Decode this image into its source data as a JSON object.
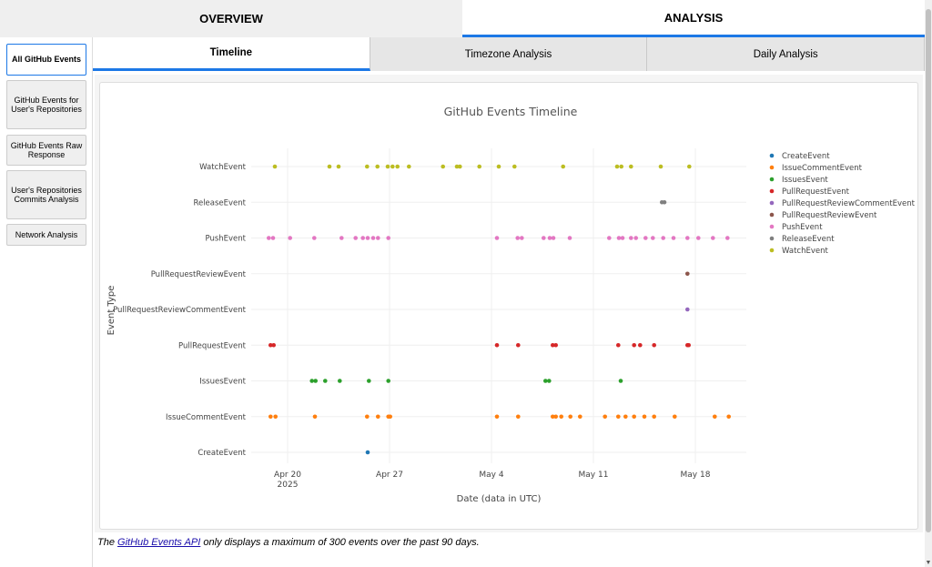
{
  "top_tabs": [
    {
      "label": "OVERVIEW",
      "active": false
    },
    {
      "label": "ANALYSIS",
      "active": true
    }
  ],
  "sidebar": {
    "items": [
      {
        "label": "All GitHub Events",
        "active": true
      },
      {
        "label": "GitHub Events for User's Repositories",
        "active": false
      },
      {
        "label": "GitHub Events Raw Response",
        "active": false
      },
      {
        "label": "User's Repositories Commits Analysis",
        "active": false
      },
      {
        "label": "Network Analysis",
        "active": false
      }
    ]
  },
  "sub_tabs": [
    {
      "label": "Timeline",
      "active": true
    },
    {
      "label": "Timezone Analysis",
      "active": false
    },
    {
      "label": "Daily Analysis",
      "active": false
    }
  ],
  "footnote": {
    "prefix": "The ",
    "link": "GitHub Events API",
    "suffix": " only displays a maximum of 300 events over the past 90 days."
  },
  "colors": {
    "accent": "#1c78e6",
    "CreateEvent": "#1f77b4",
    "IssueCommentEvent": "#ff7f0e",
    "IssuesEvent": "#2ca02c",
    "PullRequestEvent": "#d62728",
    "PullRequestReviewCommentEvent": "#9467bd",
    "PullRequestReviewEvent": "#8c564b",
    "PushEvent": "#e377c2",
    "ReleaseEvent": "#7f7f7f",
    "WatchEvent": "#bcbd22"
  },
  "chart_data": {
    "type": "scatter",
    "title": "GitHub Events Timeline",
    "xlabel": "Date (data in UTC)",
    "ylabel": "Event Type",
    "x_ticks": [
      "2025-04-20",
      "2025-04-27",
      "2025-05-04",
      "2025-05-11",
      "2025-05-18"
    ],
    "x_tick_labels": [
      "Apr 20",
      "Apr 27",
      "May 4",
      "May 11",
      "May 18"
    ],
    "x_year_label": "2025",
    "xlim": [
      "2025-04-17T12:00",
      "2025-05-21T12:00"
    ],
    "grid": true,
    "legend_position": "right",
    "categories": [
      "CreateEvent",
      "IssuesEvent",
      "IssueCommentEvent",
      "PullRequestEvent",
      "PullRequestReviewCommentEvent",
      "PullRequestReviewEvent",
      "PushEvent",
      "ReleaseEvent",
      "WatchEvent"
    ],
    "y_order": [
      "CreateEvent",
      "IssueCommentEvent",
      "IssuesEvent",
      "PullRequestEvent",
      "PullRequestReviewCommentEvent",
      "PullRequestReviewEvent",
      "PushEvent",
      "ReleaseEvent",
      "WatchEvent"
    ],
    "legend_order": [
      "CreateEvent",
      "IssueCommentEvent",
      "IssuesEvent",
      "PullRequestEvent",
      "PullRequestReviewCommentEvent",
      "PullRequestReviewEvent",
      "PushEvent",
      "ReleaseEvent",
      "WatchEvent"
    ],
    "series": [
      {
        "name": "CreateEvent",
        "x": [
          "2025-04-25T12:00"
        ]
      },
      {
        "name": "IssueCommentEvent",
        "x": [
          "2025-04-18T20:00",
          "2025-04-19T04:00",
          "2025-04-21T21:00",
          "2025-04-25T11:00",
          "2025-04-26T05:00",
          "2025-04-26T22:00",
          "2025-04-27T01:00",
          "2025-05-04T09:00",
          "2025-05-05T20:00",
          "2025-05-08T05:00",
          "2025-05-08T10:00",
          "2025-05-08T19:00",
          "2025-05-09T10:00",
          "2025-05-10T02:00",
          "2025-05-11T19:00",
          "2025-05-12T17:00",
          "2025-05-13T05:00",
          "2025-05-13T19:00",
          "2025-05-14T12:00",
          "2025-05-15T04:00",
          "2025-05-16T14:00",
          "2025-05-19T08:00",
          "2025-05-20T07:00"
        ]
      },
      {
        "name": "IssuesEvent",
        "x": [
          "2025-04-21T16:00",
          "2025-04-21T22:00",
          "2025-04-22T14:00",
          "2025-04-23T14:00",
          "2025-04-25T14:00",
          "2025-04-26T22:00",
          "2025-05-07T17:00",
          "2025-05-07T23:00",
          "2025-05-12T21:00"
        ]
      },
      {
        "name": "PullRequestEvent",
        "x": [
          "2025-04-18T20:00",
          "2025-04-19T01:00",
          "2025-05-04T09:00",
          "2025-05-05T20:00",
          "2025-05-08T05:00",
          "2025-05-08T10:00",
          "2025-05-12T17:00",
          "2025-05-13T19:00",
          "2025-05-14T05:00",
          "2025-05-15T04:00",
          "2025-05-17T11:00",
          "2025-05-17T13:00"
        ]
      },
      {
        "name": "PullRequestReviewCommentEvent",
        "x": [
          "2025-05-17T11:00"
        ]
      },
      {
        "name": "PullRequestReviewEvent",
        "x": [
          "2025-05-17T11:00"
        ]
      },
      {
        "name": "PushEvent",
        "x": [
          "2025-04-18T17:00",
          "2025-04-19T00:00",
          "2025-04-20T04:00",
          "2025-04-21T20:00",
          "2025-04-23T17:00",
          "2025-04-24T16:00",
          "2025-04-25T04:00",
          "2025-04-25T12:00",
          "2025-04-25T21:00",
          "2025-04-26T05:00",
          "2025-04-26T22:00",
          "2025-05-04T09:00",
          "2025-05-05T19:00",
          "2025-05-06T02:00",
          "2025-05-07T14:00",
          "2025-05-08T00:00",
          "2025-05-08T06:00",
          "2025-05-09T09:00",
          "2025-05-12T02:00",
          "2025-05-12T18:00",
          "2025-05-13T00:00",
          "2025-05-13T14:00",
          "2025-05-13T22:00",
          "2025-05-14T14:00",
          "2025-05-15T02:00",
          "2025-05-15T19:00",
          "2025-05-16T12:00",
          "2025-05-17T11:00",
          "2025-05-18T05:00",
          "2025-05-19T05:00",
          "2025-05-20T05:00"
        ]
      },
      {
        "name": "ReleaseEvent",
        "x": [
          "2025-05-15T17:00",
          "2025-05-15T21:00"
        ]
      },
      {
        "name": "WatchEvent",
        "x": [
          "2025-04-19T03:00",
          "2025-04-22T21:00",
          "2025-04-23T12:00",
          "2025-04-25T11:00",
          "2025-04-26T04:00",
          "2025-04-26T21:00",
          "2025-04-27T05:00",
          "2025-04-27T13:00",
          "2025-04-28T08:00",
          "2025-04-30T16:00",
          "2025-05-01T15:00",
          "2025-05-01T20:00",
          "2025-05-03T04:00",
          "2025-05-04T12:00",
          "2025-05-05T14:00",
          "2025-05-08T22:00",
          "2025-05-12T15:00",
          "2025-05-12T22:00",
          "2025-05-13T14:00",
          "2025-05-15T15:00",
          "2025-05-17T14:00"
        ]
      }
    ]
  }
}
